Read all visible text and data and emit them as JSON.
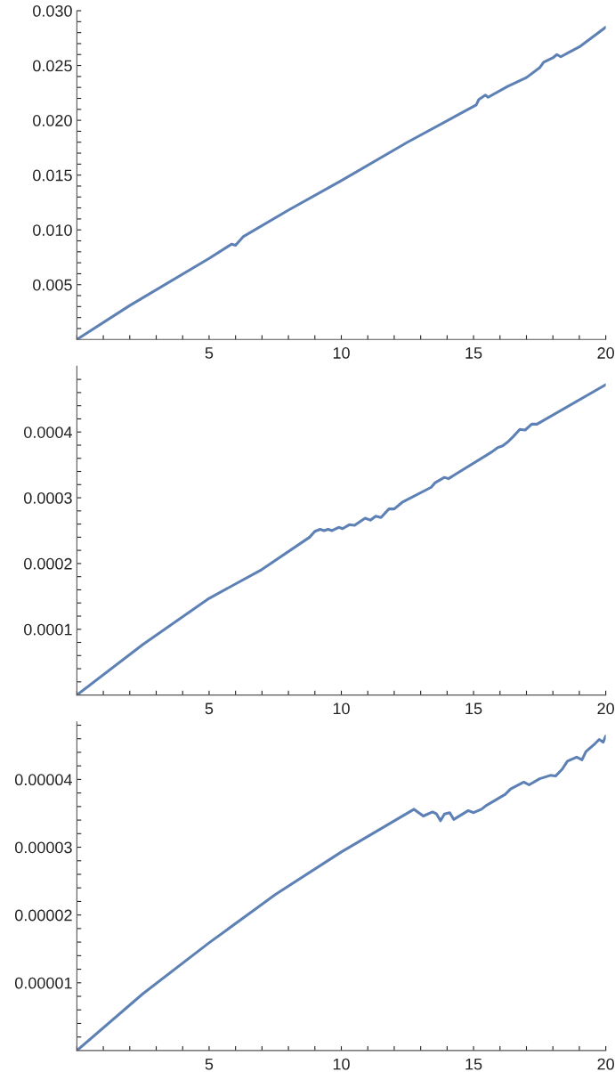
{
  "chart_data": [
    {
      "type": "line",
      "x": [
        0,
        2,
        5,
        5.85,
        6.0,
        6.3,
        8,
        10,
        12.5,
        15.1,
        15.2,
        15.45,
        15.55,
        16.3,
        17,
        17.5,
        17.65,
        18,
        18.15,
        18.3,
        18.6,
        19,
        20
      ],
      "series": [
        {
          "color": "#5e81b5",
          "values": [
            0,
            0.0031,
            0.0074,
            0.0087,
            0.0086,
            0.0094,
            0.0118,
            0.0145,
            0.018,
            0.0214,
            0.0219,
            0.0223,
            0.0221,
            0.0231,
            0.0239,
            0.0248,
            0.0253,
            0.0257,
            0.026,
            0.0258,
            0.0262,
            0.0267,
            0.0285
          ]
        }
      ],
      "xlim": [
        0,
        20
      ],
      "ylim": [
        0,
        0.03
      ],
      "xticks": [
        {
          "value": 0,
          "label": null
        },
        {
          "value": 1,
          "label": null
        },
        {
          "value": 2,
          "label": null
        },
        {
          "value": 3,
          "label": null
        },
        {
          "value": 4,
          "label": null
        },
        5,
        {
          "value": 6,
          "label": null
        },
        {
          "value": 7,
          "label": null
        },
        {
          "value": 8,
          "label": null
        },
        {
          "value": 9,
          "label": null
        },
        10,
        {
          "value": 11,
          "label": null
        },
        {
          "value": 12,
          "label": null
        },
        {
          "value": 13,
          "label": null
        },
        {
          "value": 14,
          "label": null
        },
        15,
        {
          "value": 16,
          "label": null
        },
        {
          "value": 17,
          "label": null
        },
        {
          "value": 18,
          "label": null
        },
        {
          "value": 19,
          "label": null
        },
        20
      ],
      "yticks": [
        {
          "value": 0.001,
          "label": null
        },
        {
          "value": 0.002,
          "label": null
        },
        {
          "value": 0.003,
          "label": null
        },
        {
          "value": 0.004,
          "label": null
        },
        {
          "value": 0.005,
          "label": "0.005"
        },
        {
          "value": 0.006,
          "label": null
        },
        {
          "value": 0.007,
          "label": null
        },
        {
          "value": 0.008,
          "label": null
        },
        {
          "value": 0.009,
          "label": null
        },
        {
          "value": 0.01,
          "label": "0.010"
        },
        {
          "value": 0.011,
          "label": null
        },
        {
          "value": 0.012,
          "label": null
        },
        {
          "value": 0.013,
          "label": null
        },
        {
          "value": 0.014,
          "label": null
        },
        {
          "value": 0.015,
          "label": "0.015"
        },
        {
          "value": 0.016,
          "label": null
        },
        {
          "value": 0.017,
          "label": null
        },
        {
          "value": 0.018,
          "label": null
        },
        {
          "value": 0.019,
          "label": null
        },
        {
          "value": 0.02,
          "label": "0.020"
        },
        {
          "value": 0.021,
          "label": null
        },
        {
          "value": 0.022,
          "label": null
        },
        {
          "value": 0.023,
          "label": null
        },
        {
          "value": 0.024,
          "label": null
        },
        {
          "value": 0.025,
          "label": "0.025"
        },
        {
          "value": 0.026,
          "label": null
        },
        {
          "value": 0.027,
          "label": null
        },
        {
          "value": 0.028,
          "label": null
        },
        {
          "value": 0.029,
          "label": null
        },
        {
          "value": 0.03,
          "label": "0.030"
        }
      ]
    },
    {
      "type": "line",
      "x": [
        0,
        2.5,
        5,
        7,
        8.8,
        9.0,
        9.2,
        9.35,
        9.5,
        9.65,
        9.9,
        10.05,
        10.3,
        10.5,
        10.9,
        11.1,
        11.3,
        11.5,
        11.8,
        12.0,
        12.3,
        13.4,
        13.55,
        13.9,
        14.05,
        15.7,
        15.9,
        16.1,
        16.3,
        16.5,
        16.75,
        16.95,
        17.2,
        17.4,
        20
      ],
      "series": [
        {
          "color": "#5e81b5",
          "values": [
            0,
            7.7e-05,
            0.000147,
            0.000191,
            0.00024,
            0.000249,
            0.000252,
            0.00025,
            0.000252,
            0.00025,
            0.000255,
            0.000253,
            0.000259,
            0.000258,
            0.000269,
            0.000266,
            0.000272,
            0.00027,
            0.000283,
            0.000283,
            0.000293,
            0.000316,
            0.000323,
            0.000331,
            0.000329,
            0.00037,
            0.000376,
            0.000379,
            0.000385,
            0.000393,
            0.000404,
            0.000403,
            0.000412,
            0.000412,
            0.000472
          ]
        }
      ],
      "xlim": [
        0,
        20
      ],
      "ylim": [
        0,
        0.0005
      ],
      "xticks": [
        {
          "value": 0,
          "label": null
        },
        {
          "value": 1,
          "label": null
        },
        {
          "value": 2,
          "label": null
        },
        {
          "value": 3,
          "label": null
        },
        {
          "value": 4,
          "label": null
        },
        5,
        {
          "value": 6,
          "label": null
        },
        {
          "value": 7,
          "label": null
        },
        {
          "value": 8,
          "label": null
        },
        {
          "value": 9,
          "label": null
        },
        10,
        {
          "value": 11,
          "label": null
        },
        {
          "value": 12,
          "label": null
        },
        {
          "value": 13,
          "label": null
        },
        {
          "value": 14,
          "label": null
        },
        15,
        {
          "value": 16,
          "label": null
        },
        {
          "value": 17,
          "label": null
        },
        {
          "value": 18,
          "label": null
        },
        {
          "value": 19,
          "label": null
        },
        20
      ],
      "yticks": [
        {
          "value": 2e-05,
          "label": null
        },
        {
          "value": 4e-05,
          "label": null
        },
        {
          "value": 6e-05,
          "label": null
        },
        {
          "value": 8e-05,
          "label": null
        },
        {
          "value": 0.0001,
          "label": "0.0001"
        },
        {
          "value": 0.00012,
          "label": null
        },
        {
          "value": 0.00014,
          "label": null
        },
        {
          "value": 0.00016,
          "label": null
        },
        {
          "value": 0.00018,
          "label": null
        },
        {
          "value": 0.0002,
          "label": "0.0002"
        },
        {
          "value": 0.00022,
          "label": null
        },
        {
          "value": 0.00024,
          "label": null
        },
        {
          "value": 0.00026,
          "label": null
        },
        {
          "value": 0.00028,
          "label": null
        },
        {
          "value": 0.0003,
          "label": "0.0003"
        },
        {
          "value": 0.00032,
          "label": null
        },
        {
          "value": 0.00034,
          "label": null
        },
        {
          "value": 0.00036,
          "label": null
        },
        {
          "value": 0.00038,
          "label": null
        },
        {
          "value": 0.0004,
          "label": "0.0004"
        },
        {
          "value": 0.00042,
          "label": null
        },
        {
          "value": 0.00044,
          "label": null
        },
        {
          "value": 0.00046,
          "label": null
        },
        {
          "value": 0.00048,
          "label": null
        }
      ]
    },
    {
      "type": "line",
      "x": [
        0,
        2.5,
        5,
        7.5,
        10,
        12.75,
        13.1,
        13.45,
        13.6,
        13.75,
        13.9,
        14.1,
        14.25,
        14.8,
        15.0,
        15.3,
        15.5,
        16.2,
        16.4,
        16.9,
        17.1,
        17.5,
        17.9,
        18.1,
        18.35,
        18.55,
        18.9,
        19.1,
        19.25,
        19.6,
        19.75,
        19.9,
        20
      ],
      "series": [
        {
          "color": "#5e81b5",
          "values": [
            0,
            8.4e-06,
            1.59e-05,
            2.3e-05,
            2.93e-05,
            3.56e-05,
            3.46e-05,
            3.52e-05,
            3.49e-05,
            3.39e-05,
            3.49e-05,
            3.51e-05,
            3.41e-05,
            3.54e-05,
            3.51e-05,
            3.56e-05,
            3.62e-05,
            3.78e-05,
            3.86e-05,
            3.96e-05,
            3.92e-05,
            4.01e-05,
            4.06e-05,
            4.05e-05,
            4.15e-05,
            4.27e-05,
            4.33e-05,
            4.29e-05,
            4.41e-05,
            4.53e-05,
            4.59e-05,
            4.55e-05,
            4.64e-05
          ]
        }
      ],
      "xlim": [
        0,
        20
      ],
      "ylim": [
        0,
        4.85e-05
      ],
      "xticks": [
        {
          "value": 0,
          "label": null
        },
        {
          "value": 1,
          "label": null
        },
        {
          "value": 2,
          "label": null
        },
        {
          "value": 3,
          "label": null
        },
        {
          "value": 4,
          "label": null
        },
        5,
        {
          "value": 6,
          "label": null
        },
        {
          "value": 7,
          "label": null
        },
        {
          "value": 8,
          "label": null
        },
        {
          "value": 9,
          "label": null
        },
        10,
        {
          "value": 11,
          "label": null
        },
        {
          "value": 12,
          "label": null
        },
        {
          "value": 13,
          "label": null
        },
        {
          "value": 14,
          "label": null
        },
        15,
        {
          "value": 16,
          "label": null
        },
        {
          "value": 17,
          "label": null
        },
        {
          "value": 18,
          "label": null
        },
        {
          "value": 19,
          "label": null
        },
        20
      ],
      "yticks": [
        {
          "value": 2e-06,
          "label": null
        },
        {
          "value": 4e-06,
          "label": null
        },
        {
          "value": 6e-06,
          "label": null
        },
        {
          "value": 8e-06,
          "label": null
        },
        {
          "value": 1e-05,
          "label": "0.00001"
        },
        {
          "value": 1.2e-05,
          "label": null
        },
        {
          "value": 1.4e-05,
          "label": null
        },
        {
          "value": 1.6e-05,
          "label": null
        },
        {
          "value": 1.8e-05,
          "label": null
        },
        {
          "value": 2e-05,
          "label": "0.00002"
        },
        {
          "value": 2.2e-05,
          "label": null
        },
        {
          "value": 2.4e-05,
          "label": null
        },
        {
          "value": 2.6e-05,
          "label": null
        },
        {
          "value": 2.8e-05,
          "label": null
        },
        {
          "value": 3e-05,
          "label": "0.00003"
        },
        {
          "value": 3.2e-05,
          "label": null
        },
        {
          "value": 3.4e-05,
          "label": null
        },
        {
          "value": 3.6e-05,
          "label": null
        },
        {
          "value": 3.8e-05,
          "label": null
        },
        {
          "value": 4e-05,
          "label": "0.00004"
        },
        {
          "value": 4.2e-05,
          "label": null
        },
        {
          "value": 4.4e-05,
          "label": null
        },
        {
          "value": 4.6e-05,
          "label": null
        },
        {
          "value": 4.8e-05,
          "label": null
        }
      ]
    }
  ]
}
